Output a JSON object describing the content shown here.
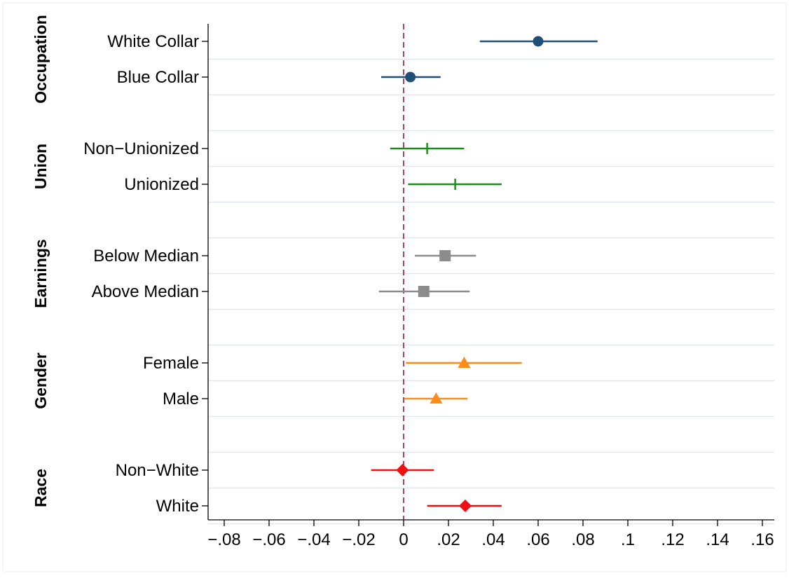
{
  "chart_data": {
    "type": "scatter",
    "subtype": "coefficient-plot",
    "title": "",
    "xlabel": "",
    "ylabel": "",
    "xlim": [
      -0.08,
      0.16
    ],
    "xticks": [
      {
        "value": -0.08,
        "label": "−.08"
      },
      {
        "value": -0.06,
        "label": "−.06"
      },
      {
        "value": -0.04,
        "label": "−.04"
      },
      {
        "value": -0.02,
        "label": "−.02"
      },
      {
        "value": 0,
        "label": "0"
      },
      {
        "value": 0.02,
        "label": ".02"
      },
      {
        "value": 0.04,
        "label": ".04"
      },
      {
        "value": 0.06,
        "label": ".06"
      },
      {
        "value": 0.08,
        "label": ".08"
      },
      {
        "value": 0.1,
        "label": ".1"
      },
      {
        "value": 0.12,
        "label": ".12"
      },
      {
        "value": 0.14,
        "label": ".14"
      },
      {
        "value": 0.16,
        "label": ".16"
      }
    ],
    "reference_line": {
      "x": 0,
      "style": "dashed",
      "color": "#8b1a3c"
    },
    "grid": "horizontal",
    "legend": "none",
    "groups": [
      {
        "name": "Occupation",
        "color": "#1f4e79",
        "marker": "circle",
        "items": [
          {
            "label": "White Collar",
            "estimate": 0.06,
            "ci_low": 0.034,
            "ci_high": 0.0865
          },
          {
            "label": "Blue Collar",
            "estimate": 0.003,
            "ci_low": -0.01,
            "ci_high": 0.0165
          }
        ]
      },
      {
        "name": "Union",
        "color": "#1a8a1a",
        "marker": "plus",
        "items": [
          {
            "label": "Non−Unionized",
            "estimate": 0.0105,
            "ci_low": -0.006,
            "ci_high": 0.027
          },
          {
            "label": "Unionized",
            "estimate": 0.023,
            "ci_low": 0.002,
            "ci_high": 0.0437
          }
        ]
      },
      {
        "name": "Earnings",
        "color": "#8c8c8c",
        "marker": "square",
        "items": [
          {
            "label": "Below Median",
            "estimate": 0.0185,
            "ci_low": 0.005,
            "ci_high": 0.0323
          },
          {
            "label": "Above Median",
            "estimate": 0.009,
            "ci_low": -0.011,
            "ci_high": 0.0295
          }
        ]
      },
      {
        "name": "Gender",
        "color": "#ff8c1a",
        "marker": "triangle",
        "items": [
          {
            "label": "Female",
            "estimate": 0.027,
            "ci_low": 0.001,
            "ci_high": 0.0527
          },
          {
            "label": "Male",
            "estimate": 0.0145,
            "ci_low": 0.0002,
            "ci_high": 0.0285
          }
        ]
      },
      {
        "name": "Race",
        "color": "#ee1111",
        "marker": "diamond",
        "items": [
          {
            "label": "Non−White",
            "estimate": -0.0005,
            "ci_low": -0.0145,
            "ci_high": 0.0135
          },
          {
            "label": "White",
            "estimate": 0.0275,
            "ci_low": 0.0105,
            "ci_high": 0.0437
          }
        ]
      }
    ]
  }
}
